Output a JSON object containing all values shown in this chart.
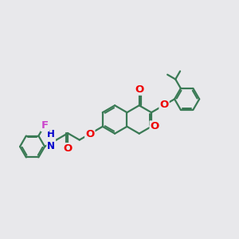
{
  "background_color": "#e8e8eb",
  "bond_color": "#3a7a55",
  "bond_width": 1.6,
  "atom_colors": {
    "O": "#ee0000",
    "N": "#0000cc",
    "F": "#cc44cc",
    "C": "#3a7a55"
  },
  "font_size": 8.5,
  "fig_size": [
    3.0,
    3.0
  ],
  "dpi": 100
}
